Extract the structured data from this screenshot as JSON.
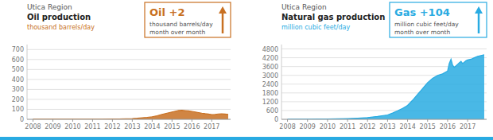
{
  "chart_data": [
    {
      "type": "area",
      "subtitle": "Utica Region",
      "title": "Oil production",
      "ylabel": "thousand barrels/day",
      "annotations": [
        "Oil +2",
        "thousand barrels/day",
        "month over month"
      ],
      "color": "#C87022",
      "x": [
        2008.0,
        2008.5,
        2009.0,
        2009.5,
        2010.0,
        2010.5,
        2011.0,
        2011.5,
        2012.0,
        2012.33,
        2012.67,
        2013.0,
        2013.25,
        2013.5,
        2013.75,
        2014.0,
        2014.25,
        2014.5,
        2014.75,
        2015.0,
        2015.17,
        2015.33,
        2015.5,
        2015.67,
        2015.83,
        2016.0,
        2016.17,
        2016.33,
        2016.5,
        2016.67,
        2016.83,
        2017.0,
        2017.17,
        2017.33,
        2017.5,
        2017.67,
        2017.83
      ],
      "values": [
        1,
        1,
        1,
        1,
        1,
        1,
        2,
        2,
        3,
        4,
        6,
        8,
        11,
        16,
        20,
        26,
        36,
        50,
        62,
        74,
        82,
        88,
        90,
        87,
        84,
        80,
        74,
        68,
        62,
        57,
        53,
        48,
        50,
        54,
        55,
        53,
        50
      ],
      "xlim": [
        2007.7,
        2017.95
      ],
      "xticks": [
        2008,
        2009,
        2010,
        2011,
        2012,
        2013,
        2014,
        2015,
        2016,
        2017
      ],
      "ylim": [
        0,
        750
      ],
      "yticks": [
        0,
        100,
        200,
        300,
        400,
        500,
        600,
        700
      ],
      "grid": true
    },
    {
      "type": "area",
      "subtitle": "Utica Region",
      "title": "Natural gas production",
      "ylabel": "million cubic feet/day",
      "annotations": [
        "Gas +104",
        "million cubic feet/day",
        "month over month"
      ],
      "color": "#29ABE2",
      "x": [
        2008.0,
        2008.5,
        2009.0,
        2009.5,
        2010.0,
        2010.5,
        2011.0,
        2011.5,
        2012.0,
        2012.5,
        2013.0,
        2013.25,
        2013.5,
        2013.75,
        2014.0,
        2014.25,
        2014.5,
        2014.75,
        2015.0,
        2015.25,
        2015.5,
        2015.75,
        2016.0,
        2016.08,
        2016.17,
        2016.25,
        2016.33,
        2016.42,
        2016.5,
        2016.58,
        2016.67,
        2016.75,
        2016.83,
        2016.92,
        2017.0,
        2017.17,
        2017.33,
        2017.5,
        2017.67,
        2017.83
      ],
      "values": [
        5,
        8,
        10,
        15,
        20,
        30,
        50,
        80,
        120,
        200,
        300,
        430,
        580,
        750,
        950,
        1300,
        1700,
        2100,
        2500,
        2800,
        3000,
        3100,
        3300,
        3800,
        4100,
        3700,
        3550,
        3650,
        3750,
        3850,
        3950,
        3800,
        3900,
        4000,
        4050,
        4100,
        4200,
        4300,
        4350,
        4400
      ],
      "xlim": [
        2007.7,
        2017.95
      ],
      "xticks": [
        2008,
        2009,
        2010,
        2011,
        2012,
        2013,
        2014,
        2015,
        2016,
        2017
      ],
      "ylim": [
        0,
        5100
      ],
      "yticks": [
        0,
        600,
        1200,
        1800,
        2400,
        3000,
        3600,
        4200,
        4800
      ],
      "grid": true
    }
  ]
}
